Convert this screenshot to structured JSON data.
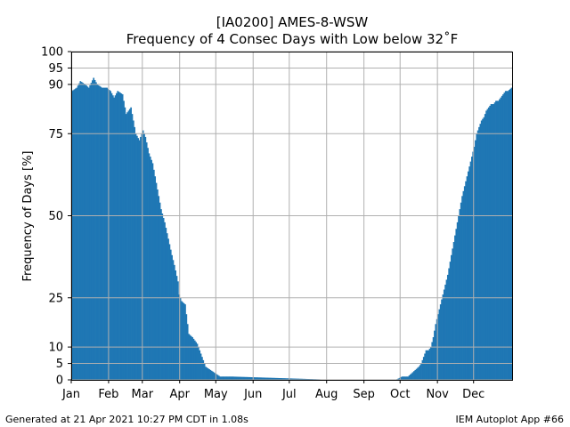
{
  "footer": {
    "generated": "Generated at 21 Apr 2021 10:27 PM CDT in 1.08s",
    "app": "IEM Autoplot App #66"
  },
  "colors": {
    "bar": "#1f77b4",
    "grid": "#b0b0b0"
  },
  "chart_data": {
    "type": "bar",
    "title": "[IA0200] AMES-8-WSW",
    "subtitle": "Frequency of 4 Consec Days with Low below 32˚F",
    "xlabel": "",
    "ylabel": "Frequency of Days [%]",
    "ylim": [
      0,
      100
    ],
    "yticks": [
      0,
      5,
      10,
      25,
      50,
      75,
      90,
      95,
      100
    ],
    "x_unit": "day of year",
    "xlim": [
      1,
      366
    ],
    "xticks": [
      {
        "label": "Jan",
        "day": 1
      },
      {
        "label": "Feb",
        "day": 32
      },
      {
        "label": "Mar",
        "day": 60
      },
      {
        "label": "Apr",
        "day": 91
      },
      {
        "label": "May",
        "day": 121
      },
      {
        "label": "Jun",
        "day": 152
      },
      {
        "label": "Jul",
        "day": 182
      },
      {
        "label": "Aug",
        "day": 213
      },
      {
        "label": "Sep",
        "day": 244
      },
      {
        "label": "Oct",
        "day": 274
      },
      {
        "label": "Nov",
        "day": 305
      },
      {
        "label": "Dec",
        "day": 335
      }
    ],
    "grid": true,
    "legend": "none",
    "series": [
      {
        "x": [
          1,
          5,
          8,
          12,
          15,
          19,
          22,
          26,
          30,
          33,
          36,
          39,
          43,
          46,
          50,
          53,
          54,
          57,
          60,
          62,
          65,
          68,
          70,
          73,
          75,
          78,
          81,
          84,
          86,
          89,
          90,
          92,
          95,
          98,
          101,
          105,
          108,
          112,
          116,
          120,
          124,
          128,
          134,
          220,
          270,
          275,
          280,
          283,
          286,
          289,
          291,
          293,
          295,
          297,
          299,
          301,
          303,
          305,
          307,
          309,
          311,
          313,
          315,
          317,
          319,
          321,
          323,
          325,
          327,
          329,
          331,
          333,
          335,
          337,
          339,
          341,
          343,
          345,
          347,
          349,
          351,
          353,
          355,
          357,
          359,
          361,
          363,
          366
        ],
        "values": [
          88,
          89,
          91,
          90,
          89,
          92,
          90,
          89,
          89,
          88,
          86,
          88,
          87,
          81,
          83,
          77,
          75,
          73,
          76,
          74,
          69,
          66,
          62,
          56,
          52,
          48,
          43,
          38,
          35,
          30,
          26,
          24,
          23,
          14,
          13,
          11,
          8,
          4,
          3,
          2,
          1,
          1,
          1,
          0,
          0,
          1,
          1,
          2,
          3,
          4,
          5,
          7,
          9,
          9,
          10,
          13,
          17,
          20,
          23,
          26,
          29,
          32,
          36,
          40,
          44,
          48,
          52,
          56,
          59,
          62,
          65,
          68,
          71,
          75,
          77,
          79,
          80,
          82,
          83,
          84,
          84,
          85,
          85,
          86,
          87,
          88,
          88,
          89
        ]
      }
    ]
  }
}
